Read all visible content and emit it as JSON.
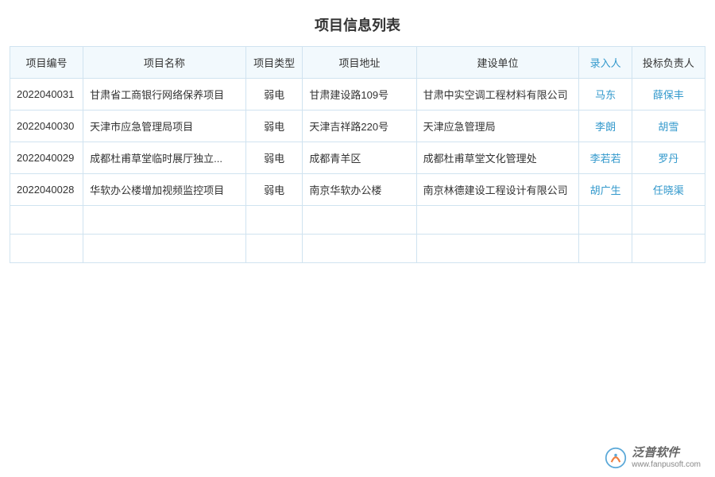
{
  "page": {
    "title": "项目信息列表"
  },
  "table": {
    "columns": [
      {
        "label": "项目编号",
        "class": "col-id"
      },
      {
        "label": "项目名称",
        "class": "col-name"
      },
      {
        "label": "项目类型",
        "class": "col-type"
      },
      {
        "label": "项目地址",
        "class": "col-addr"
      },
      {
        "label": "建设单位",
        "class": "col-unit"
      },
      {
        "label": "录入人",
        "class": "col-person1",
        "link_header": true
      },
      {
        "label": "投标负责人",
        "class": "col-person2"
      }
    ],
    "rows": [
      {
        "id": "2022040031",
        "name": "甘肃省工商银行网络保养项目",
        "type": "弱电",
        "addr": "甘肃建设路109号",
        "unit": "甘肃中实空调工程材料有限公司",
        "person1": "马东",
        "person2": "薛保丰"
      },
      {
        "id": "2022040030",
        "name": "天津市应急管理局项目",
        "type": "弱电",
        "addr": "天津吉祥路220号",
        "unit": "天津应急管理局",
        "person1": "李朗",
        "person2": "胡雪"
      },
      {
        "id": "2022040029",
        "name": "成都杜甫草堂临时展厅独立...",
        "type": "弱电",
        "addr": "成都青羊区",
        "unit": "成都杜甫草堂文化管理处",
        "person1": "李若若",
        "person2": "罗丹"
      },
      {
        "id": "2022040028",
        "name": "华软办公楼增加视频监控项目",
        "type": "弱电",
        "addr": "南京华软办公楼",
        "unit": "南京林德建设工程设计有限公司",
        "person1": "胡广生",
        "person2": "任晓渠"
      }
    ],
    "empty_rows": 2
  },
  "footer": {
    "brand_cn": "泛普软件",
    "brand_url": "www.fanpusoft.com"
  },
  "colors": {
    "header_bg": "#f2f9fd",
    "border": "#d0e3f0",
    "link": "#3399cc",
    "text": "#333333"
  }
}
